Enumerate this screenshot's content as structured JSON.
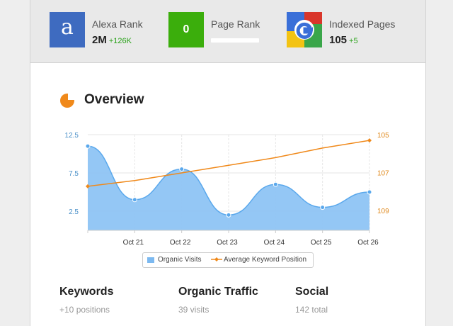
{
  "stats": {
    "alexa": {
      "label": "Alexa Rank",
      "value": "2M",
      "delta": "+126K",
      "icon": "a"
    },
    "pagerank": {
      "label": "Page Rank",
      "value": "0"
    },
    "indexed": {
      "label": "Indexed Pages",
      "value": "105",
      "delta": "+5"
    }
  },
  "overview": {
    "title": "Overview"
  },
  "chart_data": {
    "type": "line",
    "categories": [
      "Oct 21",
      "Oct 22",
      "Oct 23",
      "Oct 24",
      "Oct 25",
      "Oct 26"
    ],
    "x": [
      "",
      "Oct 21",
      "Oct 22",
      "Oct 23",
      "Oct 24",
      "Oct 25",
      "Oct 26"
    ],
    "y_left_ticks": [
      "12.5",
      "7.5",
      "2.5"
    ],
    "y_right_ticks": [
      "105",
      "107",
      "109"
    ],
    "ylim_left": [
      0,
      12.5
    ],
    "ylim_right": [
      110,
      105
    ],
    "grid": true,
    "legend_placement": "bottom-center",
    "series": [
      {
        "name": "Organic Visits",
        "type": "area",
        "axis": "left",
        "color": "#7cb9f0",
        "values": [
          11,
          4,
          8,
          2,
          6,
          3,
          5
        ]
      },
      {
        "name": "Average Keyword Position",
        "type": "line",
        "axis": "right",
        "color": "#f0891a",
        "values": [
          107.7,
          107.4,
          107.0,
          106.6,
          106.2,
          105.7,
          105.3
        ]
      }
    ]
  },
  "metrics": [
    {
      "title": "Keywords",
      "value": "+10 positions"
    },
    {
      "title": "Organic Traffic",
      "value": "39 visits"
    },
    {
      "title": "Social",
      "value": "142 total"
    }
  ]
}
